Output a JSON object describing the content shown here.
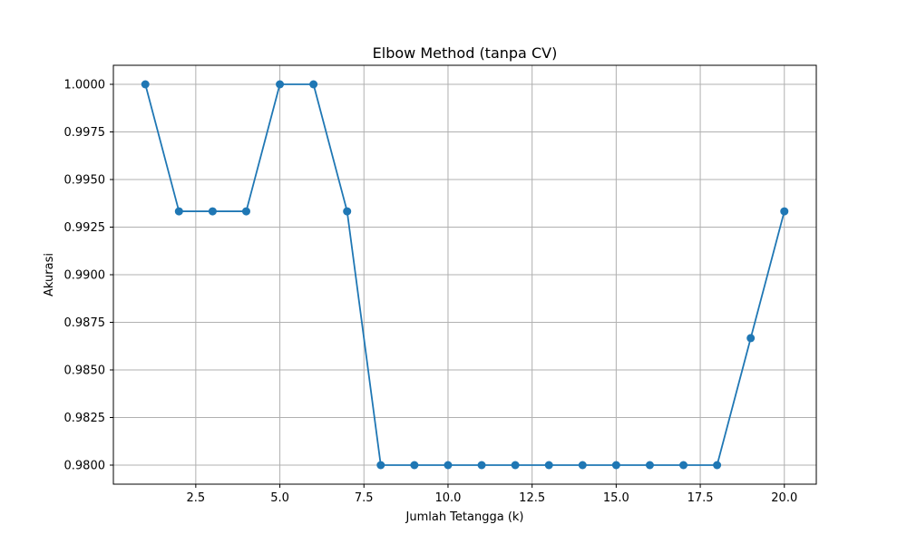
{
  "chart_data": {
    "type": "line",
    "title": "Elbow Method (tanpa CV)",
    "xlabel": "Jumlah Tetangga (k)",
    "ylabel": "Akurasi",
    "x": [
      1,
      2,
      3,
      4,
      5,
      6,
      7,
      8,
      9,
      10,
      11,
      12,
      13,
      14,
      15,
      16,
      17,
      18,
      19,
      20
    ],
    "series": [
      {
        "values": [
          1.0,
          0.99333,
          0.99333,
          0.99333,
          1.0,
          1.0,
          0.99333,
          0.98,
          0.98,
          0.98,
          0.98,
          0.98,
          0.98,
          0.98,
          0.98,
          0.98,
          0.98,
          0.98,
          0.98667,
          0.99333
        ],
        "color": "#1f77b4",
        "marker": "circle"
      }
    ],
    "xlim": [
      0.05,
      20.95
    ],
    "ylim": [
      0.979,
      1.001
    ],
    "xticks": [
      2.5,
      5.0,
      7.5,
      10.0,
      12.5,
      15.0,
      17.5,
      20.0
    ],
    "xtick_labels": [
      "2.5",
      "5.0",
      "7.5",
      "10.0",
      "12.5",
      "15.0",
      "17.5",
      "20.0"
    ],
    "yticks": [
      0.98,
      0.9825,
      0.985,
      0.9875,
      0.99,
      0.9925,
      0.995,
      0.9975,
      1.0
    ],
    "ytick_labels": [
      "0.9800",
      "0.9825",
      "0.9850",
      "0.9875",
      "0.9900",
      "0.9925",
      "0.9950",
      "0.9975",
      "1.0000"
    ],
    "grid": true,
    "grid_color": "#b0b0b0"
  }
}
